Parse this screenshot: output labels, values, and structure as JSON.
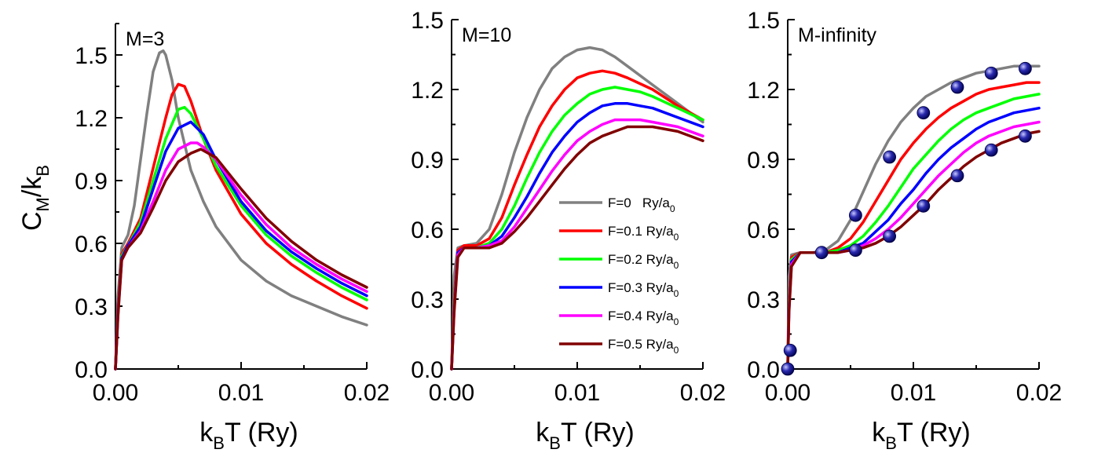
{
  "chart_data": [
    {
      "type": "line",
      "title": "M=3",
      "xlabel": "k_BT (Ry)",
      "ylabel": "C_M/k_B",
      "xlim": [
        0,
        0.02
      ],
      "ylim": [
        0,
        1.65
      ],
      "xticks": [
        "0.00",
        "0.01",
        "0.02"
      ],
      "yticks": [
        "0.0",
        "0.3",
        "0.6",
        "0.9",
        "1.2",
        "1.5"
      ],
      "series": [
        {
          "name": "F=0 Ry/a0",
          "color": "#808080",
          "x": [
            0,
            0.0002,
            0.0005,
            0.001,
            0.0015,
            0.002,
            0.0025,
            0.003,
            0.0035,
            0.0038,
            0.004,
            0.0045,
            0.005,
            0.006,
            0.007,
            0.008,
            0.01,
            0.012,
            0.014,
            0.016,
            0.018,
            0.02
          ],
          "y": [
            0.0,
            0.35,
            0.58,
            0.64,
            0.78,
            1.0,
            1.22,
            1.42,
            1.51,
            1.52,
            1.5,
            1.38,
            1.2,
            0.95,
            0.8,
            0.68,
            0.52,
            0.42,
            0.35,
            0.3,
            0.25,
            0.21
          ]
        },
        {
          "name": "F=0.1 Ry/a0",
          "color": "#ff0000",
          "x": [
            0,
            0.0002,
            0.0005,
            0.001,
            0.002,
            0.003,
            0.004,
            0.0045,
            0.005,
            0.0055,
            0.006,
            0.007,
            0.008,
            0.01,
            0.012,
            0.014,
            0.016,
            0.018,
            0.02
          ],
          "y": [
            0.0,
            0.3,
            0.55,
            0.6,
            0.72,
            0.96,
            1.2,
            1.31,
            1.36,
            1.35,
            1.28,
            1.1,
            0.95,
            0.74,
            0.6,
            0.5,
            0.42,
            0.35,
            0.29
          ]
        },
        {
          "name": "F=0.2 Ry/a0",
          "color": "#00ff00",
          "x": [
            0,
            0.0002,
            0.0005,
            0.001,
            0.002,
            0.003,
            0.004,
            0.005,
            0.0055,
            0.006,
            0.007,
            0.008,
            0.01,
            0.012,
            0.014,
            0.016,
            0.018,
            0.02
          ],
          "y": [
            0.0,
            0.28,
            0.54,
            0.59,
            0.7,
            0.9,
            1.1,
            1.24,
            1.25,
            1.22,
            1.1,
            0.97,
            0.78,
            0.64,
            0.54,
            0.46,
            0.39,
            0.33
          ]
        },
        {
          "name": "F=0.3 Ry/a0",
          "color": "#0000ff",
          "x": [
            0,
            0.0002,
            0.0005,
            0.001,
            0.002,
            0.003,
            0.004,
            0.005,
            0.006,
            0.007,
            0.008,
            0.01,
            0.012,
            0.014,
            0.016,
            0.018,
            0.02
          ],
          "y": [
            0.0,
            0.27,
            0.53,
            0.59,
            0.68,
            0.86,
            1.04,
            1.15,
            1.18,
            1.12,
            1.0,
            0.8,
            0.66,
            0.56,
            0.48,
            0.41,
            0.35
          ]
        },
        {
          "name": "F=0.4 Ry/a0",
          "color": "#ff00ff",
          "x": [
            0,
            0.0002,
            0.0005,
            0.001,
            0.002,
            0.003,
            0.004,
            0.005,
            0.006,
            0.0065,
            0.007,
            0.008,
            0.01,
            0.012,
            0.014,
            0.016,
            0.018,
            0.02
          ],
          "y": [
            0.0,
            0.26,
            0.52,
            0.58,
            0.66,
            0.8,
            0.95,
            1.05,
            1.08,
            1.08,
            1.06,
            1.0,
            0.83,
            0.69,
            0.58,
            0.5,
            0.43,
            0.37
          ]
        },
        {
          "name": "F=0.5 Ry/a0",
          "color": "#800000",
          "x": [
            0,
            0.0002,
            0.0005,
            0.001,
            0.002,
            0.003,
            0.004,
            0.005,
            0.006,
            0.0068,
            0.008,
            0.01,
            0.012,
            0.014,
            0.016,
            0.018,
            0.02
          ],
          "y": [
            0.0,
            0.25,
            0.52,
            0.58,
            0.65,
            0.77,
            0.9,
            0.99,
            1.03,
            1.05,
            1.01,
            0.86,
            0.72,
            0.61,
            0.52,
            0.45,
            0.39
          ]
        }
      ]
    },
    {
      "type": "line",
      "title": "M=10",
      "xlabel": "k_BT (Ry)",
      "ylabel": "",
      "xlim": [
        0,
        0.02
      ],
      "ylim": [
        0,
        1.5
      ],
      "xticks": [
        "0.00",
        "0.01",
        "0.02"
      ],
      "yticks": [
        "0.0",
        "0.3",
        "0.6",
        "0.9",
        "1.2",
        "1.5"
      ],
      "legend": {
        "position": "center-right"
      },
      "series": [
        {
          "name": "F=0 Ry/a0",
          "color": "#808080",
          "x": [
            0,
            0.0002,
            0.0005,
            0.001,
            0.002,
            0.003,
            0.004,
            0.005,
            0.006,
            0.007,
            0.008,
            0.009,
            0.01,
            0.011,
            0.012,
            0.013,
            0.014,
            0.016,
            0.018,
            0.02
          ],
          "y": [
            0.0,
            0.4,
            0.52,
            0.53,
            0.54,
            0.6,
            0.75,
            0.93,
            1.08,
            1.2,
            1.29,
            1.34,
            1.37,
            1.38,
            1.37,
            1.34,
            1.3,
            1.22,
            1.14,
            1.06
          ]
        },
        {
          "name": "F=0.1 Ry/a0",
          "color": "#ff0000",
          "x": [
            0,
            0.0002,
            0.0005,
            0.001,
            0.002,
            0.003,
            0.004,
            0.005,
            0.006,
            0.007,
            0.008,
            0.009,
            0.01,
            0.011,
            0.012,
            0.013,
            0.014,
            0.016,
            0.018,
            0.02
          ],
          "y": [
            0.0,
            0.3,
            0.51,
            0.53,
            0.53,
            0.56,
            0.65,
            0.79,
            0.92,
            1.04,
            1.13,
            1.2,
            1.25,
            1.27,
            1.28,
            1.27,
            1.25,
            1.2,
            1.13,
            1.07
          ]
        },
        {
          "name": "F=0.2 Ry/a0",
          "color": "#00ff00",
          "x": [
            0,
            0.0002,
            0.0005,
            0.001,
            0.002,
            0.003,
            0.004,
            0.005,
            0.006,
            0.007,
            0.008,
            0.009,
            0.01,
            0.011,
            0.012,
            0.013,
            0.014,
            0.015,
            0.016,
            0.018,
            0.02
          ],
          "y": [
            0.0,
            0.28,
            0.5,
            0.52,
            0.52,
            0.54,
            0.6,
            0.7,
            0.82,
            0.93,
            1.02,
            1.09,
            1.14,
            1.18,
            1.2,
            1.21,
            1.2,
            1.19,
            1.17,
            1.12,
            1.07
          ]
        },
        {
          "name": "F=0.3 Ry/a0",
          "color": "#0000ff",
          "x": [
            0,
            0.0002,
            0.0005,
            0.001,
            0.002,
            0.003,
            0.004,
            0.005,
            0.006,
            0.007,
            0.008,
            0.009,
            0.01,
            0.011,
            0.012,
            0.013,
            0.014,
            0.015,
            0.016,
            0.018,
            0.02
          ],
          "y": [
            0.0,
            0.26,
            0.5,
            0.52,
            0.52,
            0.53,
            0.57,
            0.65,
            0.74,
            0.84,
            0.93,
            1.0,
            1.06,
            1.1,
            1.13,
            1.14,
            1.14,
            1.13,
            1.12,
            1.08,
            1.04
          ]
        },
        {
          "name": "F=0.4 Ry/a0",
          "color": "#ff00ff",
          "x": [
            0,
            0.0002,
            0.0005,
            0.001,
            0.002,
            0.003,
            0.004,
            0.005,
            0.006,
            0.007,
            0.008,
            0.009,
            0.01,
            0.011,
            0.012,
            0.013,
            0.014,
            0.015,
            0.016,
            0.018,
            0.02
          ],
          "y": [
            0.0,
            0.25,
            0.49,
            0.52,
            0.52,
            0.53,
            0.55,
            0.61,
            0.69,
            0.77,
            0.85,
            0.92,
            0.98,
            1.02,
            1.05,
            1.07,
            1.07,
            1.07,
            1.06,
            1.04,
            1.0
          ]
        },
        {
          "name": "F=0.5 Ry/a0",
          "color": "#800000",
          "x": [
            0,
            0.0002,
            0.0005,
            0.001,
            0.002,
            0.003,
            0.004,
            0.005,
            0.006,
            0.007,
            0.008,
            0.009,
            0.01,
            0.011,
            0.012,
            0.013,
            0.014,
            0.015,
            0.016,
            0.018,
            0.02
          ],
          "y": [
            0.0,
            0.24,
            0.48,
            0.52,
            0.52,
            0.52,
            0.54,
            0.59,
            0.65,
            0.72,
            0.79,
            0.86,
            0.92,
            0.97,
            1.0,
            1.02,
            1.04,
            1.04,
            1.04,
            1.02,
            0.98
          ]
        }
      ],
      "legend_entries": [
        {
          "label": "F=0   Ry/a",
          "sub": "0",
          "color": "#808080"
        },
        {
          "label": "F=0.1 Ry/a",
          "sub": "0",
          "color": "#ff0000"
        },
        {
          "label": "F=0.2 Ry/a",
          "sub": "0",
          "color": "#00ff00"
        },
        {
          "label": "F=0.3 Ry/a",
          "sub": "0",
          "color": "#0000ff"
        },
        {
          "label": "F=0.4 Ry/a",
          "sub": "0",
          "color": "#ff00ff"
        },
        {
          "label": "F=0.5 Ry/a",
          "sub": "0",
          "color": "#800000"
        }
      ]
    },
    {
      "type": "line",
      "title": "M-infinity",
      "xlabel": "k_BT (Ry)",
      "ylabel": "",
      "xlim": [
        0,
        0.02
      ],
      "ylim": [
        0,
        1.5
      ],
      "xticks": [
        "0.00",
        "0.01",
        "0.02"
      ],
      "yticks": [
        "0.0",
        "0.3",
        "0.6",
        "0.9",
        "1.2",
        "1.5"
      ],
      "series": [
        {
          "name": "F=0 Ry/a0",
          "color": "#808080",
          "x": [
            0,
            0.0001,
            0.0003,
            0.001,
            0.002,
            0.003,
            0.004,
            0.005,
            0.006,
            0.007,
            0.008,
            0.009,
            0.01,
            0.011,
            0.012,
            0.013,
            0.014,
            0.015,
            0.016,
            0.017,
            0.018,
            0.019,
            0.02
          ],
          "y": [
            0.0,
            0.4,
            0.49,
            0.5,
            0.5,
            0.51,
            0.55,
            0.64,
            0.76,
            0.88,
            0.98,
            1.06,
            1.12,
            1.17,
            1.2,
            1.23,
            1.25,
            1.27,
            1.28,
            1.29,
            1.3,
            1.3,
            1.3
          ]
        },
        {
          "name": "F=0.1 Ry/a0",
          "color": "#ff0000",
          "x": [
            0,
            0.0001,
            0.0003,
            0.001,
            0.002,
            0.003,
            0.004,
            0.005,
            0.006,
            0.007,
            0.008,
            0.009,
            0.01,
            0.011,
            0.012,
            0.013,
            0.014,
            0.015,
            0.016,
            0.017,
            0.018,
            0.019,
            0.02
          ],
          "y": [
            0.0,
            0.3,
            0.48,
            0.5,
            0.5,
            0.5,
            0.52,
            0.56,
            0.63,
            0.72,
            0.81,
            0.9,
            0.97,
            1.03,
            1.08,
            1.12,
            1.15,
            1.18,
            1.2,
            1.21,
            1.22,
            1.23,
            1.23
          ]
        },
        {
          "name": "F=0.2 Ry/a0",
          "color": "#00ff00",
          "x": [
            0,
            0.0001,
            0.0003,
            0.001,
            0.002,
            0.003,
            0.004,
            0.005,
            0.006,
            0.007,
            0.008,
            0.009,
            0.01,
            0.011,
            0.012,
            0.013,
            0.014,
            0.015,
            0.016,
            0.017,
            0.018,
            0.019,
            0.02
          ],
          "y": [
            0.0,
            0.28,
            0.47,
            0.5,
            0.5,
            0.5,
            0.51,
            0.53,
            0.57,
            0.63,
            0.7,
            0.78,
            0.86,
            0.92,
            0.98,
            1.03,
            1.07,
            1.1,
            1.12,
            1.14,
            1.16,
            1.17,
            1.18
          ]
        },
        {
          "name": "F=0.3 Ry/a0",
          "color": "#0000ff",
          "x": [
            0,
            0.0001,
            0.0003,
            0.001,
            0.002,
            0.003,
            0.004,
            0.005,
            0.006,
            0.007,
            0.008,
            0.009,
            0.01,
            0.011,
            0.012,
            0.013,
            0.014,
            0.015,
            0.016,
            0.017,
            0.018,
            0.019,
            0.02
          ],
          "y": [
            0.0,
            0.26,
            0.46,
            0.5,
            0.5,
            0.5,
            0.5,
            0.52,
            0.54,
            0.59,
            0.64,
            0.71,
            0.77,
            0.84,
            0.9,
            0.95,
            0.99,
            1.03,
            1.06,
            1.08,
            1.1,
            1.11,
            1.12
          ]
        },
        {
          "name": "F=0.4 Ry/a0",
          "color": "#ff00ff",
          "x": [
            0,
            0.0001,
            0.0003,
            0.001,
            0.002,
            0.003,
            0.004,
            0.005,
            0.006,
            0.007,
            0.008,
            0.009,
            0.01,
            0.011,
            0.012,
            0.013,
            0.014,
            0.015,
            0.016,
            0.017,
            0.018,
            0.019,
            0.02
          ],
          "y": [
            0.0,
            0.25,
            0.45,
            0.5,
            0.5,
            0.5,
            0.5,
            0.51,
            0.53,
            0.56,
            0.6,
            0.65,
            0.71,
            0.77,
            0.83,
            0.88,
            0.93,
            0.97,
            1.0,
            1.02,
            1.04,
            1.05,
            1.06
          ]
        },
        {
          "name": "F=0.5 Ry/a0",
          "color": "#800000",
          "x": [
            0,
            0.0001,
            0.0003,
            0.001,
            0.002,
            0.003,
            0.004,
            0.005,
            0.006,
            0.007,
            0.008,
            0.009,
            0.01,
            0.011,
            0.012,
            0.013,
            0.014,
            0.015,
            0.016,
            0.017,
            0.018,
            0.019,
            0.02
          ],
          "y": [
            0.0,
            0.24,
            0.44,
            0.5,
            0.5,
            0.5,
            0.5,
            0.51,
            0.52,
            0.54,
            0.57,
            0.61,
            0.66,
            0.71,
            0.77,
            0.82,
            0.87,
            0.91,
            0.94,
            0.97,
            0.99,
            1.01,
            1.02
          ]
        }
      ],
      "markers": [
        {
          "x": 0.0,
          "y": 0.0
        },
        {
          "x": 0.0002,
          "y": 0.08
        },
        {
          "x": 0.0027,
          "y": 0.5
        },
        {
          "x": 0.0054,
          "y": 0.51
        },
        {
          "x": 0.0054,
          "y": 0.66
        },
        {
          "x": 0.0081,
          "y": 0.57
        },
        {
          "x": 0.0081,
          "y": 0.91
        },
        {
          "x": 0.0108,
          "y": 0.7
        },
        {
          "x": 0.0108,
          "y": 1.1
        },
        {
          "x": 0.0135,
          "y": 0.83
        },
        {
          "x": 0.0135,
          "y": 1.21
        },
        {
          "x": 0.0162,
          "y": 0.94
        },
        {
          "x": 0.0162,
          "y": 1.27
        },
        {
          "x": 0.0189,
          "y": 1.0
        },
        {
          "x": 0.0189,
          "y": 1.29
        }
      ]
    }
  ]
}
